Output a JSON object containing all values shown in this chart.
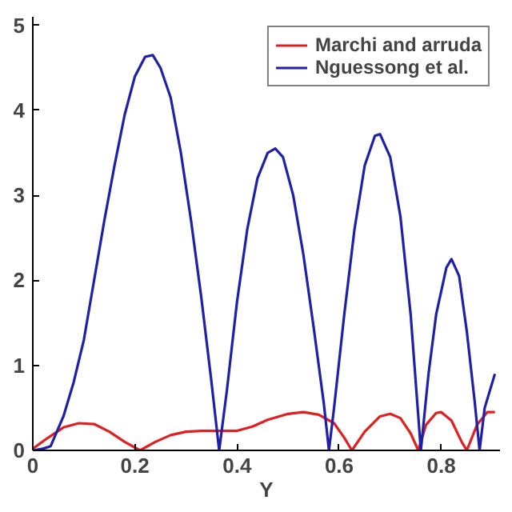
{
  "chart_data": {
    "type": "line",
    "xlabel": "Y",
    "xlim": [
      0,
      0.915
    ],
    "ylim": [
      0,
      5.1
    ],
    "xticks": [
      0,
      0.2,
      0.4,
      0.6,
      0.8
    ],
    "yticks": [
      0,
      1,
      2,
      3,
      4,
      5
    ],
    "grid": false,
    "legend": "top right",
    "marker": "none",
    "line_style": "solid",
    "series": [
      {
        "name": "Marchi and arruda",
        "color": "#e02020",
        "x": [
          0,
          0.03,
          0.06,
          0.09,
          0.12,
          0.15,
          0.18,
          0.21,
          0.24,
          0.27,
          0.3,
          0.33,
          0.36,
          0.4,
          0.43,
          0.46,
          0.5,
          0.53,
          0.56,
          0.59,
          0.61,
          0.625,
          0.65,
          0.68,
          0.7,
          0.72,
          0.74,
          0.755,
          0.77,
          0.79,
          0.8,
          0.82,
          0.84,
          0.85,
          0.87,
          0.89,
          0.905
        ],
        "values": [
          0.02,
          0.15,
          0.27,
          0.32,
          0.31,
          0.22,
          0.1,
          0.0,
          0.1,
          0.18,
          0.22,
          0.23,
          0.23,
          0.23,
          0.28,
          0.36,
          0.43,
          0.45,
          0.42,
          0.32,
          0.15,
          0.0,
          0.22,
          0.4,
          0.43,
          0.38,
          0.2,
          0.0,
          0.3,
          0.44,
          0.45,
          0.35,
          0.1,
          0.0,
          0.3,
          0.45,
          0.45
        ]
      },
      {
        "name": "Nguessong et al.",
        "color": "#1f1fa8",
        "x": [
          0,
          0.02,
          0.035,
          0.06,
          0.08,
          0.1,
          0.12,
          0.14,
          0.16,
          0.18,
          0.2,
          0.22,
          0.235,
          0.25,
          0.27,
          0.29,
          0.31,
          0.33,
          0.35,
          0.365,
          0.38,
          0.4,
          0.42,
          0.44,
          0.46,
          0.475,
          0.49,
          0.51,
          0.53,
          0.55,
          0.57,
          0.58,
          0.59,
          0.61,
          0.63,
          0.65,
          0.67,
          0.68,
          0.7,
          0.72,
          0.74,
          0.76,
          0.775,
          0.79,
          0.81,
          0.82,
          0.835,
          0.85,
          0.865,
          0.875,
          0.885,
          0.905
        ],
        "values": [
          0,
          0.02,
          0.05,
          0.4,
          0.8,
          1.3,
          2.0,
          2.7,
          3.35,
          3.95,
          4.4,
          4.63,
          4.65,
          4.5,
          4.15,
          3.5,
          2.7,
          1.8,
          0.8,
          0.0,
          0.7,
          1.75,
          2.6,
          3.2,
          3.5,
          3.55,
          3.45,
          3.0,
          2.3,
          1.45,
          0.55,
          0.0,
          0.5,
          1.6,
          2.6,
          3.35,
          3.7,
          3.72,
          3.45,
          2.75,
          1.6,
          0.0,
          0.9,
          1.6,
          2.15,
          2.25,
          2.05,
          1.4,
          0.6,
          0.0,
          0.5,
          0.9
        ]
      }
    ]
  }
}
